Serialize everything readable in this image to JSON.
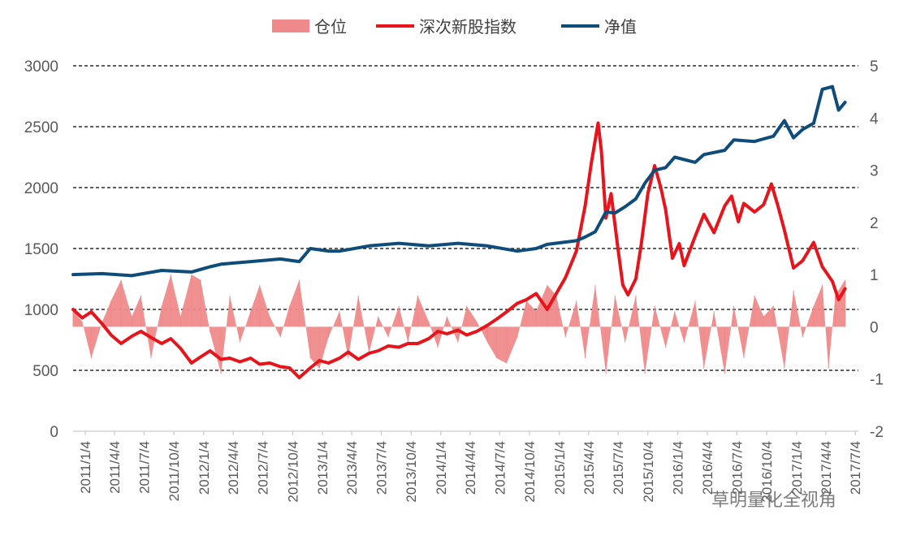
{
  "legend": [
    {
      "key": "position",
      "label": "仓位",
      "color": "#F08A8A"
    },
    {
      "key": "index",
      "label": "深次新股指数",
      "color": "#E8141B"
    },
    {
      "key": "nav",
      "label": "净值",
      "color": "#0E4C7A"
    }
  ],
  "watermark": "草明量化全视角",
  "chart_data": {
    "type": "line",
    "x_tick_labels": [
      "2011/1/4",
      "2011/4/4",
      "2011/7/4",
      "2011/10/4",
      "2012/1/4",
      "2012/4/4",
      "2012/7/4",
      "2012/10/4",
      "2013/1/4",
      "2013/4/4",
      "2013/7/4",
      "2013/10/4",
      "2014/1/4",
      "2014/4/4",
      "2014/7/4",
      "2014/10/4",
      "2015/1/4",
      "2015/4/4",
      "2015/7/4",
      "2015/10/4",
      "2016/1/4",
      "2016/4/4",
      "2016/7/4",
      "2016/10/4",
      "2017/1/4",
      "2017/4/4",
      "2017/7/4"
    ],
    "left_axis": {
      "ylim": [
        0,
        3000
      ],
      "ticks": [
        0,
        500,
        1000,
        1500,
        2000,
        2500,
        3000
      ]
    },
    "right_axis": {
      "ylim": [
        -2,
        5
      ],
      "ticks": [
        -2,
        -1,
        0,
        1,
        2,
        3,
        4,
        5
      ]
    },
    "gridlines_left": [
      500,
      1000,
      1500,
      2000,
      2500,
      3000
    ],
    "legend_position": "top",
    "series": [
      {
        "name": "深次新股指数",
        "axis": "left",
        "kind": "line",
        "color": "#E8141B",
        "points": [
          [
            "2011/1/4",
            1000
          ],
          [
            "2011/2/1",
            930
          ],
          [
            "2011/3/1",
            980
          ],
          [
            "2011/4/4",
            880
          ],
          [
            "2011/5/1",
            790
          ],
          [
            "2011/6/1",
            720
          ],
          [
            "2011/7/4",
            780
          ],
          [
            "2011/8/1",
            820
          ],
          [
            "2011/9/1",
            770
          ],
          [
            "2011/10/4",
            720
          ],
          [
            "2011/11/1",
            760
          ],
          [
            "2011/12/1",
            680
          ],
          [
            "2012/1/4",
            560
          ],
          [
            "2012/2/1",
            610
          ],
          [
            "2012/3/1",
            660
          ],
          [
            "2012/4/4",
            590
          ],
          [
            "2012/5/1",
            600
          ],
          [
            "2012/6/1",
            570
          ],
          [
            "2012/7/4",
            600
          ],
          [
            "2012/8/1",
            550
          ],
          [
            "2012/9/1",
            560
          ],
          [
            "2012/10/4",
            530
          ],
          [
            "2012/11/1",
            520
          ],
          [
            "2012/12/1",
            440
          ],
          [
            "2013/1/4",
            520
          ],
          [
            "2013/2/1",
            580
          ],
          [
            "2013/3/1",
            560
          ],
          [
            "2013/4/4",
            600
          ],
          [
            "2013/5/1",
            650
          ],
          [
            "2013/6/1",
            590
          ],
          [
            "2013/7/4",
            640
          ],
          [
            "2013/8/1",
            660
          ],
          [
            "2013/9/1",
            700
          ],
          [
            "2013/10/4",
            690
          ],
          [
            "2013/11/1",
            720
          ],
          [
            "2013/12/1",
            720
          ],
          [
            "2014/1/4",
            760
          ],
          [
            "2014/2/1",
            820
          ],
          [
            "2014/3/1",
            800
          ],
          [
            "2014/4/4",
            830
          ],
          [
            "2014/5/1",
            790
          ],
          [
            "2014/6/1",
            820
          ],
          [
            "2014/7/4",
            870
          ],
          [
            "2014/8/1",
            920
          ],
          [
            "2014/9/1",
            980
          ],
          [
            "2014/10/4",
            1050
          ],
          [
            "2014/11/1",
            1080
          ],
          [
            "2014/12/1",
            1130
          ],
          [
            "2015/1/4",
            1000
          ],
          [
            "2015/2/1",
            1130
          ],
          [
            "2015/3/1",
            1260
          ],
          [
            "2015/4/4",
            1480
          ],
          [
            "2015/5/1",
            1850
          ],
          [
            "2015/5/20",
            2200
          ],
          [
            "2015/6/10",
            2530
          ],
          [
            "2015/6/20",
            2300
          ],
          [
            "2015/7/4",
            1750
          ],
          [
            "2015/7/20",
            1950
          ],
          [
            "2015/8/10",
            1500
          ],
          [
            "2015/8/25",
            1200
          ],
          [
            "2015/9/10",
            1120
          ],
          [
            "2015/10/4",
            1250
          ],
          [
            "2015/10/20",
            1520
          ],
          [
            "2015/11/10",
            1950
          ],
          [
            "2015/12/1",
            2180
          ],
          [
            "2015/12/20",
            2000
          ],
          [
            "2016/1/4",
            1820
          ],
          [
            "2016/1/25",
            1420
          ],
          [
            "2016/2/15",
            1540
          ],
          [
            "2016/3/1",
            1360
          ],
          [
            "2016/4/4",
            1600
          ],
          [
            "2016/5/1",
            1780
          ],
          [
            "2016/6/1",
            1630
          ],
          [
            "2016/7/4",
            1850
          ],
          [
            "2016/7/25",
            1930
          ],
          [
            "2016/8/15",
            1720
          ],
          [
            "2016/9/1",
            1870
          ],
          [
            "2016/10/4",
            1800
          ],
          [
            "2016/11/1",
            1860
          ],
          [
            "2016/11/25",
            2030
          ],
          [
            "2016/12/15",
            1850
          ],
          [
            "2017/1/4",
            1650
          ],
          [
            "2017/2/1",
            1340
          ],
          [
            "2017/3/1",
            1400
          ],
          [
            "2017/4/4",
            1550
          ],
          [
            "2017/5/1",
            1350
          ],
          [
            "2017/6/1",
            1230
          ],
          [
            "2017/6/20",
            1080
          ],
          [
            "2017/7/10",
            1170
          ]
        ]
      },
      {
        "name": "净值",
        "axis": "right",
        "kind": "line",
        "color": "#0E4C7A",
        "points": [
          [
            "2011/1/4",
            1.0
          ],
          [
            "2011/4/4",
            1.02
          ],
          [
            "2011/7/4",
            0.98
          ],
          [
            "2011/10/4",
            1.08
          ],
          [
            "2012/1/4",
            1.05
          ],
          [
            "2012/3/1",
            1.15
          ],
          [
            "2012/4/4",
            1.2
          ],
          [
            "2012/7/4",
            1.25
          ],
          [
            "2012/10/4",
            1.3
          ],
          [
            "2012/12/1",
            1.25
          ],
          [
            "2013/1/4",
            1.5
          ],
          [
            "2013/3/1",
            1.45
          ],
          [
            "2013/4/4",
            1.45
          ],
          [
            "2013/7/4",
            1.55
          ],
          [
            "2013/10/4",
            1.6
          ],
          [
            "2014/1/4",
            1.55
          ],
          [
            "2014/4/4",
            1.6
          ],
          [
            "2014/7/4",
            1.55
          ],
          [
            "2014/10/4",
            1.45
          ],
          [
            "2014/12/1",
            1.5
          ],
          [
            "2015/1/4",
            1.58
          ],
          [
            "2015/4/4",
            1.65
          ],
          [
            "2015/5/1",
            1.72
          ],
          [
            "2015/6/1",
            1.82
          ],
          [
            "2015/7/4",
            2.2
          ],
          [
            "2015/8/1",
            2.18
          ],
          [
            "2015/9/1",
            2.3
          ],
          [
            "2015/10/4",
            2.45
          ],
          [
            "2015/11/1",
            2.75
          ],
          [
            "2015/12/1",
            3.0
          ],
          [
            "2016/1/4",
            3.05
          ],
          [
            "2016/2/1",
            3.25
          ],
          [
            "2016/4/4",
            3.15
          ],
          [
            "2016/5/1",
            3.3
          ],
          [
            "2016/7/4",
            3.38
          ],
          [
            "2016/8/1",
            3.58
          ],
          [
            "2016/10/4",
            3.55
          ],
          [
            "2016/11/1",
            3.6
          ],
          [
            "2016/12/1",
            3.65
          ],
          [
            "2017/1/4",
            3.95
          ],
          [
            "2017/2/1",
            3.62
          ],
          [
            "2017/3/1",
            3.78
          ],
          [
            "2017/4/4",
            3.9
          ],
          [
            "2017/5/1",
            4.55
          ],
          [
            "2017/6/1",
            4.6
          ],
          [
            "2017/6/20",
            4.15
          ],
          [
            "2017/7/10",
            4.3
          ]
        ]
      },
      {
        "name": "仓位",
        "axis": "right",
        "kind": "area",
        "color": "#F08A8A",
        "points": [
          [
            "2011/1/4",
            0.3
          ],
          [
            "2011/2/1",
            0.1
          ],
          [
            "2011/3/1",
            -0.6
          ],
          [
            "2011/4/4",
            0.1
          ],
          [
            "2011/5/1",
            0.5
          ],
          [
            "2011/6/1",
            0.9
          ],
          [
            "2011/7/4",
            0.2
          ],
          [
            "2011/8/1",
            0.6
          ],
          [
            "2011/9/1",
            -0.6
          ],
          [
            "2011/10/4",
            0.4
          ],
          [
            "2011/11/1",
            1.0
          ],
          [
            "2011/12/1",
            0.2
          ],
          [
            "2012/1/4",
            1.0
          ],
          [
            "2012/2/1",
            0.9
          ],
          [
            "2012/3/1",
            -0.1
          ],
          [
            "2012/4/4",
            -0.9
          ],
          [
            "2012/5/1",
            0.6
          ],
          [
            "2012/6/1",
            -0.3
          ],
          [
            "2012/7/4",
            0.3
          ],
          [
            "2012/8/1",
            0.8
          ],
          [
            "2012/9/1",
            0.2
          ],
          [
            "2012/10/4",
            -0.2
          ],
          [
            "2012/11/1",
            0.4
          ],
          [
            "2012/12/1",
            0.9
          ],
          [
            "2013/1/4",
            -0.6
          ],
          [
            "2013/2/1",
            -0.8
          ],
          [
            "2013/3/1",
            -0.2
          ],
          [
            "2013/4/4",
            0.3
          ],
          [
            "2013/5/1",
            -0.6
          ],
          [
            "2013/6/1",
            0.6
          ],
          [
            "2013/7/4",
            -0.5
          ],
          [
            "2013/8/1",
            0.2
          ],
          [
            "2013/9/1",
            -0.2
          ],
          [
            "2013/10/4",
            0.4
          ],
          [
            "2013/11/1",
            -0.3
          ],
          [
            "2013/12/1",
            0.6
          ],
          [
            "2014/1/4",
            0.1
          ],
          [
            "2014/2/1",
            -0.4
          ],
          [
            "2014/3/1",
            0.2
          ],
          [
            "2014/4/4",
            -0.3
          ],
          [
            "2014/5/1",
            0.4
          ],
          [
            "2014/6/1",
            0.1
          ],
          [
            "2014/7/4",
            -0.3
          ],
          [
            "2014/8/1",
            -0.6
          ],
          [
            "2014/9/1",
            -0.7
          ],
          [
            "2014/10/4",
            -0.2
          ],
          [
            "2014/11/1",
            0.5
          ],
          [
            "2014/12/1",
            0.3
          ],
          [
            "2015/1/4",
            0.8
          ],
          [
            "2015/2/1",
            0.6
          ],
          [
            "2015/3/1",
            -0.2
          ],
          [
            "2015/4/4",
            0.5
          ],
          [
            "2015/5/1",
            -0.6
          ],
          [
            "2015/6/1",
            0.8
          ],
          [
            "2015/7/4",
            -0.9
          ],
          [
            "2015/8/1",
            0.6
          ],
          [
            "2015/9/1",
            -0.3
          ],
          [
            "2015/10/4",
            0.6
          ],
          [
            "2015/11/1",
            -0.9
          ],
          [
            "2015/12/1",
            0.4
          ],
          [
            "2016/1/4",
            -0.4
          ],
          [
            "2016/2/1",
            0.3
          ],
          [
            "2016/3/1",
            -0.3
          ],
          [
            "2016/4/4",
            0.5
          ],
          [
            "2016/5/1",
            -0.8
          ],
          [
            "2016/6/1",
            0.3
          ],
          [
            "2016/7/4",
            -0.9
          ],
          [
            "2016/8/1",
            0.4
          ],
          [
            "2016/9/1",
            -0.6
          ],
          [
            "2016/10/4",
            0.6
          ],
          [
            "2016/11/1",
            0.2
          ],
          [
            "2016/12/1",
            0.4
          ],
          [
            "2017/1/4",
            -0.8
          ],
          [
            "2017/2/1",
            0.7
          ],
          [
            "2017/3/1",
            -0.2
          ],
          [
            "2017/4/4",
            0.4
          ],
          [
            "2017/5/1",
            0.8
          ],
          [
            "2017/5/20",
            -0.8
          ],
          [
            "2017/6/10",
            0.6
          ],
          [
            "2017/7/10",
            0.9
          ]
        ]
      }
    ]
  }
}
